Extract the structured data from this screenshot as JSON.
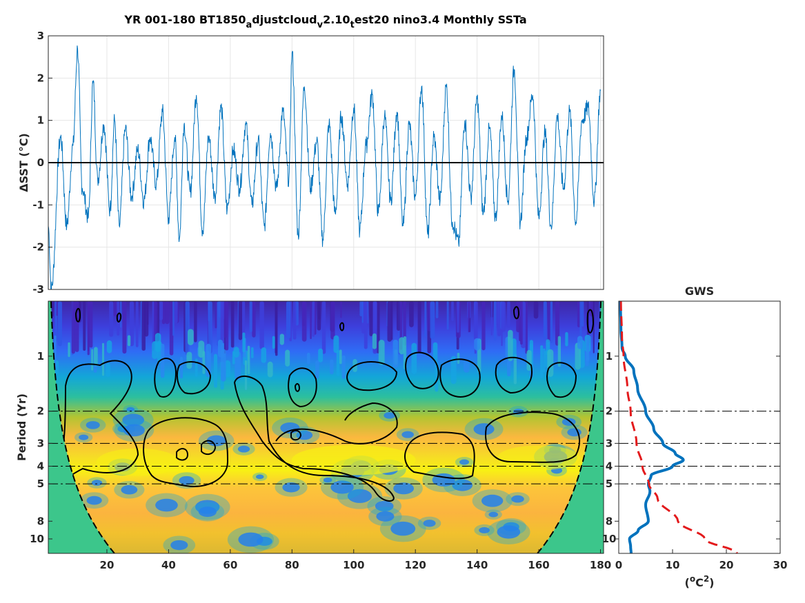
{
  "chart_data": [
    {
      "id": "timeseries",
      "type": "line",
      "title": "YR 001-180 BT1850_adjustcloud_v2.10_test20 nino3.4 Monthly SSTa",
      "title_parts": {
        "p1": "YR 001-180 BT1850",
        "s1": "a",
        "p2": "djustcloud",
        "s2": "v",
        "p3": "2.10",
        "s3": "t",
        "p4": "est20 nino3.4 Monthly SSTa"
      },
      "ylabel": "ΔSST (°C)",
      "xlim": [
        1,
        181
      ],
      "ylim": [
        -3,
        3
      ],
      "yticks": [
        "-3",
        "-2",
        "-1",
        "0",
        "1",
        "2",
        "3"
      ],
      "grid": true,
      "series_color": "#0072BD",
      "zero_line_color": "#000000",
      "anomaly_peaks": {
        "x": [
          1,
          2,
          5,
          7,
          9,
          10.5,
          12,
          14,
          15.5,
          17,
          19,
          21,
          22.5,
          24,
          26,
          28,
          30,
          32,
          34,
          36,
          38,
          40,
          42,
          43.5,
          45,
          47,
          49,
          51,
          53,
          55,
          57,
          59,
          61,
          63,
          65,
          67,
          69,
          71,
          73,
          75,
          77,
          79,
          80,
          82,
          84,
          86,
          88,
          90,
          92,
          94,
          96,
          98,
          100,
          102,
          104,
          106,
          108,
          110,
          112,
          114,
          116,
          118,
          120,
          122,
          124,
          126,
          128,
          130,
          132,
          134,
          136,
          138,
          140,
          142,
          144,
          146,
          148,
          150,
          152,
          154,
          156,
          158,
          160,
          162,
          164,
          166,
          168,
          170,
          172,
          174,
          176,
          178,
          180
        ],
        "y": [
          -1.5,
          -3.0,
          0.6,
          -1.5,
          0.4,
          2.7,
          -0.6,
          -1.3,
          1.9,
          -0.4,
          0.9,
          -1.1,
          1.0,
          -1.5,
          0.8,
          -0.8,
          0.3,
          -0.9,
          0.6,
          -0.5,
          1.2,
          -1.3,
          0.6,
          -1.8,
          0.9,
          -0.7,
          1.6,
          -1.6,
          0.6,
          -0.8,
          1.3,
          -1.1,
          0.3,
          -0.6,
          0.9,
          -1.0,
          0.5,
          -1.5,
          0.7,
          -0.6,
          1.2,
          -0.4,
          2.6,
          -1.7,
          1.8,
          -0.6,
          0.5,
          -1.8,
          0.9,
          -1.2,
          1.1,
          -0.5,
          1.3,
          -1.6,
          0.4,
          1.6,
          -1.2,
          1.1,
          -0.9,
          1.2,
          -1.5,
          0.9,
          -0.8,
          1.8,
          -1.7,
          0.6,
          -0.9,
          1.8,
          -1.4,
          -1.9,
          1.0,
          -0.8,
          1.5,
          -1.2,
          0.8,
          -1.3,
          1.1,
          -0.9,
          2.2,
          -1.4,
          0.6,
          1.6,
          -1.3,
          0.7,
          -1.5,
          1.1,
          -0.6,
          1.2,
          -1.4,
          1.0,
          1.3,
          -0.9,
          1.7
        ]
      }
    },
    {
      "id": "wavelet",
      "type": "heatmap",
      "ylabel": "Period (Yr)",
      "yscale": "log",
      "ylim": [
        0.5,
        12
      ],
      "xlim": [
        1,
        181
      ],
      "xticks": [
        "20",
        "40",
        "60",
        "80",
        "100",
        "120",
        "140",
        "160",
        "180"
      ],
      "ytick_values": [
        1,
        2,
        3,
        4,
        5,
        8,
        10
      ],
      "yticks": [
        "1",
        "2",
        "3",
        "4",
        "5",
        "8",
        "10"
      ],
      "reference_periods": [
        2,
        3,
        4,
        5
      ],
      "colormap": "parula",
      "cone_color": "#3cc68b",
      "peak_band_period": 3.7
    },
    {
      "id": "gws",
      "type": "line",
      "title": "GWS",
      "xlabel": "(°C²)",
      "xlabel_parts": {
        "pre": "(",
        "sup1": "o",
        "mid": "C",
        "sup2": "2",
        "post": ")"
      },
      "xlim": [
        0,
        30
      ],
      "xticks": [
        "0",
        "10",
        "20",
        "30"
      ],
      "yscale": "log",
      "ylim": [
        0.5,
        12
      ],
      "yticks": [
        "1",
        "2",
        "3",
        "4",
        "5",
        "8",
        "10"
      ],
      "reference_periods": [
        2,
        3,
        4,
        5
      ],
      "series": [
        {
          "name": "",
          "color": "#0072BD",
          "period": [
            0.5,
            0.7,
            0.9,
            1.0,
            1.2,
            1.5,
            2.0,
            2.5,
            3.0,
            3.4,
            3.7,
            4.0,
            4.5,
            5.0,
            5.5,
            6.5,
            8.0,
            9.0,
            10.0,
            11.0,
            12.0
          ],
          "power": [
            0.3,
            0.4,
            0.6,
            1.2,
            2.8,
            3.5,
            5.0,
            6.5,
            8.2,
            10.5,
            12.0,
            10.0,
            6.0,
            5.5,
            5.8,
            5.0,
            5.5,
            3.6,
            2.0,
            2.2,
            2.3
          ]
        },
        {
          "name": "",
          "color": "#e31a1c",
          "dashed": true,
          "period": [
            0.5,
            0.8,
            1.0,
            1.5,
            2.0,
            3.0,
            4.0,
            5.0,
            6.0,
            8.0,
            10.0,
            12.0
          ],
          "power": [
            0.4,
            0.6,
            0.9,
            1.6,
            2.2,
            3.3,
            4.4,
            5.6,
            7.2,
            11.0,
            16.0,
            22.0
          ]
        }
      ]
    }
  ]
}
